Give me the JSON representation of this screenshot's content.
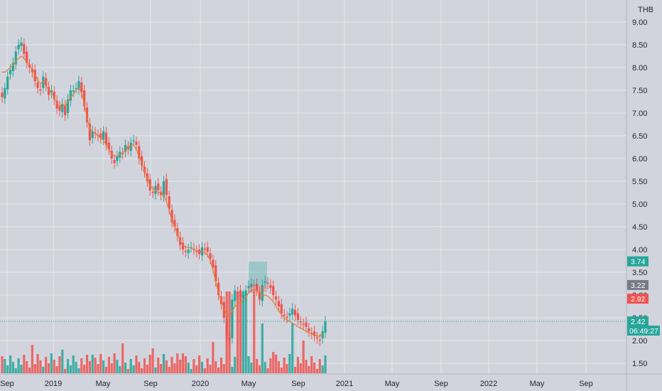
{
  "currency": "THB",
  "clock": "06:49:27",
  "chart_data": {
    "type": "candlestick",
    "y_ticks": [
      "9.00",
      "8.50",
      "8.00",
      "7.50",
      "7.00",
      "6.50",
      "6.00",
      "5.50",
      "5.00",
      "4.50",
      "4.00",
      "3.50",
      "3.00",
      "2.50",
      "2.00",
      "1.50"
    ],
    "x_labels": [
      "Sep",
      "2019",
      "May",
      "Sep",
      "2020",
      "May",
      "Sep",
      "2021",
      "May",
      "Sep",
      "2022",
      "May",
      "Sep"
    ],
    "ylim": [
      1.2,
      9.2
    ],
    "grid": true,
    "price_labels": [
      {
        "value": "3.74",
        "color": "#26a69a"
      },
      {
        "value": "3.22",
        "color": "#787b86"
      },
      {
        "value": "2.92",
        "color": "#ef5350"
      },
      {
        "value": "2.42",
        "color": "#26a69a"
      }
    ],
    "colors": {
      "up": "#26a69a",
      "down": "#ef5350",
      "ma": "#e57c2e",
      "background": "#d1d4dc",
      "grid": "#e6e8ee"
    },
    "series": [
      {
        "name": "price",
        "values": [
          7.35,
          7.55,
          7.8,
          7.95,
          8.1,
          8.35,
          8.5,
          8.55,
          8.3,
          8.1,
          8.0,
          7.9,
          7.7,
          7.55,
          7.5,
          7.8,
          7.6,
          7.4,
          7.5,
          7.3,
          7.1,
          7.05,
          7.2,
          6.95,
          7.3,
          7.5,
          7.5,
          7.55,
          7.7,
          7.45,
          7.15,
          6.8,
          6.4,
          6.6,
          6.55,
          6.5,
          6.45,
          6.6,
          6.3,
          6.2,
          6.0,
          5.9,
          6.05,
          6.15,
          6.1,
          6.3,
          6.2,
          6.35,
          6.4,
          6.3,
          6.0,
          5.85,
          5.7,
          5.5,
          5.3,
          5.25,
          5.4,
          5.3,
          5.2,
          5.5,
          5.2,
          4.9,
          4.6,
          4.5,
          4.3,
          4.1,
          4.0,
          3.95,
          4.0,
          4.05,
          4.0,
          3.95,
          3.9,
          4.05,
          4.0,
          3.95,
          3.8,
          3.6,
          3.3,
          3.0,
          2.8,
          2.5,
          2.1,
          2.0,
          2.9,
          3.1,
          3.05,
          2.95,
          3.0,
          3.1,
          3.2,
          3.25,
          3.2,
          3.1,
          2.9,
          3.22,
          3.3,
          3.25,
          3.15,
          3.0,
          2.9,
          2.75,
          2.6,
          2.55,
          2.5,
          2.6,
          2.7,
          2.55,
          2.45,
          2.4,
          2.35,
          2.3,
          2.2,
          2.15,
          2.1,
          2.05,
          2.0,
          2.2,
          2.42
        ]
      },
      {
        "name": "ma",
        "values": [
          7.9,
          7.9,
          7.95,
          8.0,
          8.05,
          8.15,
          8.2,
          8.25,
          8.2,
          8.12,
          8.05,
          7.95,
          7.85,
          7.72,
          7.65,
          7.7,
          7.62,
          7.5,
          7.45,
          7.35,
          7.2,
          7.15,
          7.2,
          7.15,
          7.25,
          7.35,
          7.42,
          7.5,
          7.55,
          7.45,
          7.2,
          6.9,
          6.65,
          6.6,
          6.55,
          6.5,
          6.45,
          6.4,
          6.3,
          6.2,
          6.1,
          6.05,
          6.05,
          6.1,
          6.12,
          6.18,
          6.22,
          6.3,
          6.3,
          6.2,
          6.05,
          5.9,
          5.75,
          5.55,
          5.4,
          5.35,
          5.3,
          5.25,
          5.25,
          5.2,
          5.05,
          4.85,
          4.65,
          4.5,
          4.35,
          4.2,
          4.1,
          4.05,
          4.05,
          4.03,
          4.0,
          3.97,
          3.95,
          3.95,
          3.93,
          3.88,
          3.75,
          3.55,
          3.3,
          3.05,
          2.88,
          2.7,
          2.55,
          2.55,
          2.65,
          2.75,
          2.8,
          2.85,
          2.9,
          2.95,
          3.05,
          3.1,
          3.12,
          3.1,
          3.05,
          3.0,
          3.0,
          2.98,
          2.92,
          2.85,
          2.75,
          2.65,
          2.58,
          2.5,
          2.45,
          2.42,
          2.38,
          2.35,
          2.3,
          2.27,
          2.24,
          2.2,
          2.17,
          2.15,
          2.12,
          2.1,
          2.1,
          2.15
        ]
      }
    ]
  }
}
